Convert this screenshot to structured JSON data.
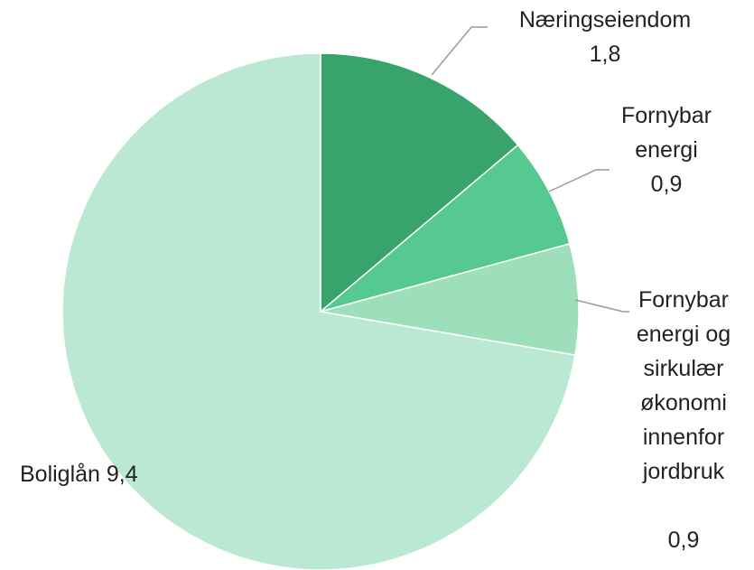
{
  "chart_data": {
    "type": "pie",
    "categories": [
      "Næringseiendom",
      "Fornybar energi",
      "Fornybar energi og sirkulær økonomi innenfor jordbruk",
      "Boliglån"
    ],
    "values": [
      1.8,
      0.9,
      0.9,
      9.4
    ],
    "value_labels": [
      "1,8",
      "0,9",
      "0,9",
      "9,4"
    ],
    "colors": [
      "#38a36b",
      "#55c98f",
      "#9cdfba",
      "#bae8d2"
    ]
  }
}
